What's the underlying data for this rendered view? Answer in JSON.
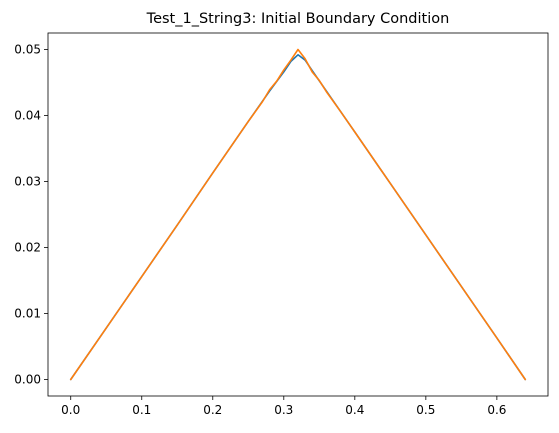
{
  "chart_data": {
    "type": "line",
    "title": "Test_1_String3: Initial Boundary Condition",
    "xlabel": "",
    "ylabel": "",
    "xlim": [
      -0.032,
      0.672
    ],
    "ylim": [
      -0.0025,
      0.0525
    ],
    "x_ticks": [
      0.0,
      0.1,
      0.2,
      0.3,
      0.4,
      0.5,
      0.6
    ],
    "x_tick_labels": [
      "0.0",
      "0.1",
      "0.2",
      "0.3",
      "0.4",
      "0.5",
      "0.6"
    ],
    "y_ticks": [
      0.0,
      0.01,
      0.02,
      0.03,
      0.04,
      0.05
    ],
    "y_tick_labels": [
      "0.00",
      "0.01",
      "0.02",
      "0.03",
      "0.04",
      "0.05"
    ],
    "grid": false,
    "series": [
      {
        "color": "#1f77b4",
        "x": [
          0.0,
          0.05,
          0.1,
          0.15,
          0.2,
          0.25,
          0.28,
          0.3,
          0.31,
          0.32,
          0.33,
          0.34,
          0.36,
          0.4,
          0.45,
          0.5,
          0.55,
          0.6,
          0.64
        ],
        "y": [
          0.0,
          0.0078,
          0.0156,
          0.0234,
          0.0313,
          0.0391,
          0.0437,
          0.0466,
          0.0482,
          0.0492,
          0.0484,
          0.0468,
          0.0437,
          0.0375,
          0.0297,
          0.0219,
          0.0141,
          0.0063,
          0.0
        ]
      },
      {
        "color": "#ff7f0e",
        "x": [
          0.0,
          0.05,
          0.1,
          0.15,
          0.2,
          0.25,
          0.27,
          0.28,
          0.29,
          0.3,
          0.31,
          0.32,
          0.33,
          0.34,
          0.35,
          0.36,
          0.38,
          0.4,
          0.45,
          0.5,
          0.55,
          0.6,
          0.64
        ],
        "y": [
          0.0,
          0.0078,
          0.0156,
          0.0234,
          0.0313,
          0.0391,
          0.0421,
          0.0439,
          0.0452,
          0.0469,
          0.0484,
          0.05,
          0.0486,
          0.0466,
          0.0453,
          0.0436,
          0.0406,
          0.0375,
          0.0297,
          0.0219,
          0.0141,
          0.0063,
          0.0
        ]
      }
    ]
  }
}
